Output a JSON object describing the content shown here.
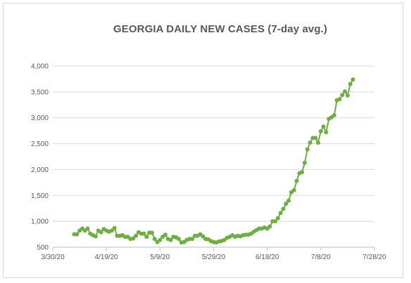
{
  "chart_data": {
    "type": "line",
    "title": "GEORGIA DAILY NEW CASES (7-day avg.)",
    "xlabel": "",
    "ylabel": "",
    "ylim": [
      500,
      4000
    ],
    "xlim": [
      "2020-03-30",
      "2020-07-28"
    ],
    "y_ticks": [
      {
        "value": 500,
        "label": "500"
      },
      {
        "value": 1000,
        "label": "1,000"
      },
      {
        "value": 1500,
        "label": "1,500"
      },
      {
        "value": 2000,
        "label": "2,000"
      },
      {
        "value": 2500,
        "label": "2,500"
      },
      {
        "value": 3000,
        "label": "3,000"
      },
      {
        "value": 3500,
        "label": "3,500"
      },
      {
        "value": 4000,
        "label": "4,000"
      }
    ],
    "x_ticks": [
      {
        "value": "2020-03-30",
        "label": "3/30/20"
      },
      {
        "value": "2020-04-19",
        "label": "4/19/20"
      },
      {
        "value": "2020-05-09",
        "label": "5/9/20"
      },
      {
        "value": "2020-05-29",
        "label": "5/29/20"
      },
      {
        "value": "2020-06-18",
        "label": "6/18/20"
      },
      {
        "value": "2020-07-08",
        "label": "7/8/20"
      },
      {
        "value": "2020-07-28",
        "label": "7/28/20"
      }
    ],
    "grid": true,
    "legend": "none",
    "color": "#70ad47",
    "series": [
      {
        "x": [
          "2020-04-07",
          "2020-04-08",
          "2020-04-09",
          "2020-04-10",
          "2020-04-11",
          "2020-04-12",
          "2020-04-13",
          "2020-04-14",
          "2020-04-15",
          "2020-04-16",
          "2020-04-17",
          "2020-04-18",
          "2020-04-19",
          "2020-04-20",
          "2020-04-21",
          "2020-04-22",
          "2020-04-23",
          "2020-04-24",
          "2020-04-25",
          "2020-04-26",
          "2020-04-27",
          "2020-04-28",
          "2020-04-29",
          "2020-04-30",
          "2020-05-01",
          "2020-05-02",
          "2020-05-03",
          "2020-05-04",
          "2020-05-05",
          "2020-05-06",
          "2020-05-07",
          "2020-05-08",
          "2020-05-09",
          "2020-05-10",
          "2020-05-11",
          "2020-05-12",
          "2020-05-13",
          "2020-05-14",
          "2020-05-15",
          "2020-05-16",
          "2020-05-17",
          "2020-05-18",
          "2020-05-19",
          "2020-05-20",
          "2020-05-21",
          "2020-05-22",
          "2020-05-23",
          "2020-05-24",
          "2020-05-25",
          "2020-05-26",
          "2020-05-27",
          "2020-05-28",
          "2020-05-29",
          "2020-05-30",
          "2020-05-31",
          "2020-06-01",
          "2020-06-02",
          "2020-06-03",
          "2020-06-04",
          "2020-06-05",
          "2020-06-06",
          "2020-06-07",
          "2020-06-08",
          "2020-06-09",
          "2020-06-10",
          "2020-06-11",
          "2020-06-12",
          "2020-06-13",
          "2020-06-14",
          "2020-06-15",
          "2020-06-16",
          "2020-06-17",
          "2020-06-18",
          "2020-06-19",
          "2020-06-20",
          "2020-06-21",
          "2020-06-22",
          "2020-06-23",
          "2020-06-24",
          "2020-06-25",
          "2020-06-26",
          "2020-06-27",
          "2020-06-28",
          "2020-06-29",
          "2020-06-30",
          "2020-07-01",
          "2020-07-02",
          "2020-07-03",
          "2020-07-04",
          "2020-07-05",
          "2020-07-06",
          "2020-07-07",
          "2020-07-08",
          "2020-07-09",
          "2020-07-10",
          "2020-07-11",
          "2020-07-12",
          "2020-07-13",
          "2020-07-14",
          "2020-07-15",
          "2020-07-16",
          "2020-07-17",
          "2020-07-18",
          "2020-07-19",
          "2020-07-20"
        ],
        "y": [
          750,
          750,
          820,
          860,
          820,
          860,
          760,
          730,
          710,
          820,
          790,
          850,
          820,
          800,
          820,
          870,
          720,
          720,
          730,
          700,
          700,
          660,
          670,
          720,
          790,
          760,
          760,
          700,
          780,
          780,
          660,
          600,
          640,
          700,
          740,
          660,
          640,
          700,
          690,
          660,
          590,
          600,
          640,
          660,
          660,
          720,
          720,
          750,
          710,
          660,
          650,
          620,
          600,
          590,
          610,
          620,
          640,
          680,
          700,
          730,
          700,
          720,
          710,
          730,
          740,
          740,
          760,
          800,
          830,
          860,
          860,
          880,
          860,
          900,
          1000,
          1000,
          1060,
          1160,
          1240,
          1340,
          1400,
          1560,
          1600,
          1780,
          1930,
          1950,
          2130,
          2390,
          2520,
          2610,
          2610,
          2520,
          2740,
          2830,
          2720,
          2980,
          3010,
          3050,
          3340,
          3360,
          3440,
          3510,
          3430,
          3650,
          3740
        ]
      }
    ]
  }
}
